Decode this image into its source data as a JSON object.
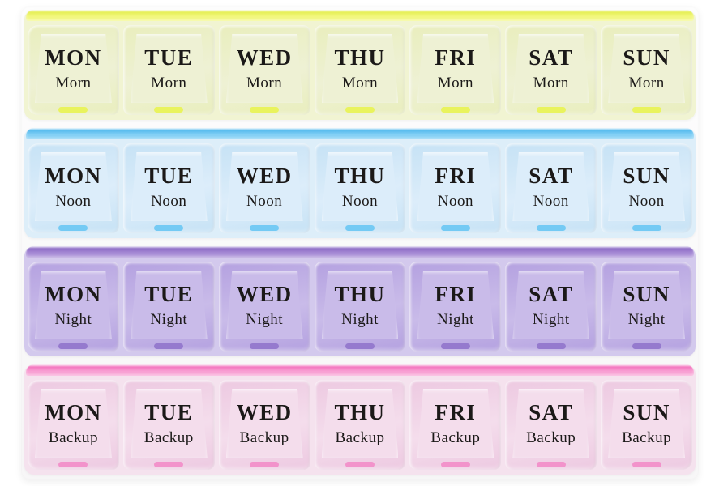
{
  "image_type": "product-photo",
  "product": "weekly-pill-organizer-28-compartments",
  "background_color": "#ffffff",
  "days": [
    "MON",
    "TUE",
    "WED",
    "THU",
    "FRI",
    "SAT",
    "SUN"
  ],
  "rows": [
    {
      "period": "Morn",
      "colors": {
        "hinge_line": "#e6ef58",
        "hinge": "#f2f77e",
        "row_bg": "#f1f4d2",
        "lid": "#e9eebd",
        "face": "#eef1d4",
        "latch": "#e9f257",
        "text": "#1b1918"
      }
    },
    {
      "period": "Noon",
      "colors": {
        "hinge_line": "#59bcee",
        "hinge": "#84d0f5",
        "row_bg": "#ddeef9",
        "lid": "#c6e2f5",
        "face": "#dcedfa",
        "latch": "#6fc8f3",
        "text": "#1b1918"
      }
    },
    {
      "period": "Night",
      "colors": {
        "hinge_line": "#8d6cc6",
        "hinge": "#a78cd6",
        "row_bg": "#d3c9ed",
        "lid": "#b4a1e0",
        "face": "#c9bbe9",
        "latch": "#9277cc",
        "text": "#1b1918"
      }
    },
    {
      "period": "Backup",
      "colors": {
        "hinge_line": "#f478c0",
        "hinge": "#f8a0d3",
        "row_bg": "#f5e2ee",
        "lid": "#edc9e1",
        "face": "#f4ddec",
        "latch": "#f18fc9",
        "text": "#1b1918"
      }
    }
  ]
}
